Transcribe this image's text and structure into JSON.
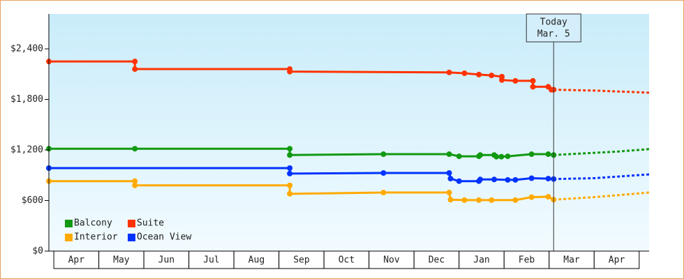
{
  "chart_data": {
    "type": "line",
    "xlim": [
      -0.11,
      13.22
    ],
    "xticks": [
      {
        "value": 0.5,
        "label": "Apr"
      },
      {
        "value": 1.5,
        "label": "May"
      },
      {
        "value": 2.5,
        "label": "Jun"
      },
      {
        "value": 3.5,
        "label": "Jul"
      },
      {
        "value": 4.5,
        "label": "Aug"
      },
      {
        "value": 5.5,
        "label": "Sep"
      },
      {
        "value": 6.5,
        "label": "Oct"
      },
      {
        "value": 7.5,
        "label": "Nov"
      },
      {
        "value": 8.5,
        "label": "Dec"
      },
      {
        "value": 9.5,
        "label": "Jan"
      },
      {
        "value": 10.5,
        "label": "Feb"
      },
      {
        "value": 11.5,
        "label": "Mar"
      },
      {
        "value": 12.5,
        "label": "Apr"
      }
    ],
    "ylim": [
      0,
      2814
    ],
    "yticks": [
      {
        "value": 0,
        "label": "$0"
      },
      {
        "value": 600,
        "label": "$600"
      },
      {
        "value": 1200,
        "label": "$1,200"
      },
      {
        "value": 1800,
        "label": "$1,800"
      },
      {
        "value": 2400,
        "label": "$2,400"
      }
    ],
    "annotation": {
      "lines": [
        "Today",
        "Mar. 5"
      ],
      "x": 11.1
    },
    "series": [
      {
        "name": "Balcony",
        "color": "#119911",
        "x": [
          -0.11,
          1.8,
          5.24,
          5.24,
          7.32,
          8.78,
          9.0,
          9.44,
          9.47,
          9.78,
          9.83,
          9.94,
          10.08,
          10.61,
          10.98,
          11.1
        ],
        "values": [
          1215,
          1215,
          1215,
          1140,
          1150,
          1150,
          1125,
          1125,
          1140,
          1140,
          1120,
          1120,
          1125,
          1150,
          1150,
          1140
        ],
        "forecast": {
          "x": [
            11.1,
            12.5,
            13.22
          ],
          "values": [
            1140,
            1180,
            1210
          ]
        }
      },
      {
        "name": "Suite",
        "color": "#ff3300",
        "x": [
          -0.11,
          1.8,
          1.8,
          5.24,
          5.24,
          8.78,
          9.12,
          9.44,
          9.72,
          9.95,
          9.95,
          10.25,
          10.64,
          10.64,
          10.98,
          11.05,
          11.1
        ],
        "values": [
          2250,
          2250,
          2160,
          2160,
          2130,
          2120,
          2110,
          2095,
          2085,
          2070,
          2030,
          2020,
          2020,
          1950,
          1950,
          1915,
          1915
        ],
        "forecast": {
          "x": [
            11.1,
            12.0,
            13.22
          ],
          "values": [
            1915,
            1905,
            1880
          ]
        }
      },
      {
        "name": "Interior",
        "color": "#ffaa00",
        "x": [
          -0.11,
          1.8,
          1.8,
          5.24,
          5.24,
          7.32,
          8.78,
          8.81,
          9.12,
          9.44,
          9.72,
          10.25,
          10.61,
          10.98,
          11.1
        ],
        "values": [
          830,
          830,
          780,
          780,
          680,
          695,
          695,
          610,
          605,
          605,
          605,
          605,
          640,
          645,
          610
        ],
        "forecast": {
          "x": [
            11.1,
            12.0,
            13.22
          ],
          "values": [
            610,
            640,
            695
          ]
        }
      },
      {
        "name": "Ocean View",
        "color": "#0033ff",
        "x": [
          -0.11,
          5.24,
          5.24,
          7.32,
          8.78,
          8.81,
          9.0,
          9.44,
          9.47,
          9.78,
          10.08,
          10.25,
          10.61,
          10.98,
          11.1
        ],
        "values": [
          985,
          985,
          920,
          927,
          927,
          860,
          830,
          830,
          850,
          850,
          845,
          845,
          865,
          860,
          855
        ],
        "forecast": {
          "x": [
            11.1,
            12.0,
            13.22
          ],
          "values": [
            855,
            865,
            910
          ]
        }
      }
    ]
  }
}
